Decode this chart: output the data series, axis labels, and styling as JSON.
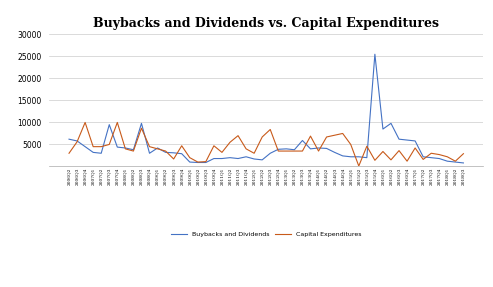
{
  "title": "Buybacks and Dividends vs. Capital Expenditures",
  "legend_labels": [
    "Buybacks and Dividends",
    "Capital Expenditures"
  ],
  "line_colors": [
    "#4472C4",
    "#C85A1A"
  ],
  "background_color": "#ffffff",
  "grid_color": "#cccccc",
  "ylim": [
    0,
    30000
  ],
  "yticks": [
    0,
    5000,
    10000,
    15000,
    20000,
    25000,
    30000
  ],
  "quarters": [
    "2006Q2",
    "2006Q3",
    "2006Q4",
    "2007Q1",
    "2007Q2",
    "2007Q3",
    "2007Q4",
    "2008Q1",
    "2008Q2",
    "2008Q3",
    "2008Q4",
    "2009Q1",
    "2009Q2",
    "2009Q3",
    "2009Q4",
    "2010Q1",
    "2010Q2",
    "2010Q3",
    "2010Q4",
    "2011Q1",
    "2011Q2",
    "2011Q3",
    "2011Q4",
    "2012Q1",
    "2012Q2",
    "2012Q3",
    "2012Q4",
    "2013Q1",
    "2013Q2",
    "2013Q3",
    "2013Q4",
    "2014Q1",
    "2014Q2",
    "2014Q3",
    "2014Q4",
    "2015Q1",
    "2015Q2",
    "2015Q3",
    "2015Q4",
    "2016Q1",
    "2016Q2",
    "2016Q3",
    "2016Q4",
    "2017Q1",
    "2017Q2",
    "2017Q3",
    "2017Q4",
    "2018Q1",
    "2018Q2",
    "2018Q3"
  ],
  "buybacks": [
    6200,
    5800,
    4500,
    3200,
    3000,
    9500,
    4400,
    4200,
    3800,
    9800,
    3000,
    4200,
    3200,
    3100,
    2900,
    1000,
    900,
    900,
    1800,
    1800,
    2000,
    1800,
    2200,
    1700,
    1500,
    3000,
    3900,
    4000,
    3800,
    5900,
    4000,
    4200,
    4100,
    3200,
    2400,
    2200,
    2200,
    2000,
    25500,
    8500,
    9800,
    6200,
    6000,
    5800,
    2200,
    2000,
    1800,
    1200,
    1000,
    800
  ],
  "capex": [
    3000,
    5600,
    10000,
    4500,
    4500,
    5000,
    10000,
    4000,
    3500,
    8700,
    4500,
    4000,
    3500,
    1700,
    4700,
    2000,
    1000,
    1100,
    4700,
    3200,
    5500,
    7000,
    4000,
    3000,
    6700,
    8400,
    3500,
    3500,
    3500,
    3500,
    6900,
    3500,
    6700,
    7100,
    7500,
    5000,
    100,
    4600,
    1400,
    3400,
    1500,
    3600,
    1200,
    4200,
    1600,
    3000,
    2700,
    2200,
    1200,
    2900
  ]
}
